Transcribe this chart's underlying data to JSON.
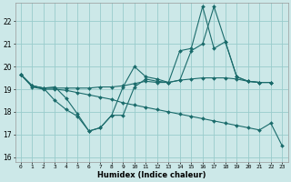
{
  "xlabel": "Humidex (Indice chaleur)",
  "x": [
    0,
    1,
    2,
    3,
    4,
    5,
    6,
    7,
    8,
    9,
    10,
    11,
    12,
    13,
    14,
    15,
    16,
    17,
    18,
    19,
    20,
    21,
    22,
    23
  ],
  "line_flat": [
    19.65,
    19.15,
    19.05,
    19.05,
    19.05,
    19.05,
    19.05,
    19.1,
    19.1,
    19.15,
    19.25,
    19.35,
    19.3,
    19.3,
    19.4,
    19.45,
    19.5,
    19.5,
    19.5,
    19.45,
    19.35,
    19.3,
    19.3,
    null
  ],
  "line_upper": [
    19.65,
    19.15,
    19.05,
    19.1,
    18.6,
    17.9,
    17.15,
    17.3,
    17.85,
    19.1,
    20.0,
    19.55,
    19.45,
    19.3,
    20.7,
    20.8,
    22.65,
    20.8,
    21.1,
    19.55,
    19.35,
    19.3,
    19.3,
    null
  ],
  "line_mid": [
    19.65,
    19.15,
    19.05,
    18.5,
    18.1,
    17.8,
    17.15,
    17.3,
    17.85,
    17.85,
    19.1,
    19.45,
    19.35,
    19.3,
    19.4,
    20.7,
    21.0,
    22.65,
    21.1,
    19.55,
    19.35,
    19.3,
    19.3,
    null
  ],
  "line_diag": [
    19.65,
    19.1,
    19.0,
    19.0,
    18.95,
    18.85,
    18.75,
    18.65,
    18.55,
    18.4,
    18.3,
    18.2,
    18.1,
    18.0,
    17.9,
    17.8,
    17.7,
    17.6,
    17.5,
    17.4,
    17.3,
    17.2,
    17.5,
    16.5
  ],
  "bg_color": "#cce8e8",
  "line_color": "#1a6b6b",
  "grid_color": "#99cccc",
  "ylim": [
    15.8,
    22.8
  ],
  "yticks": [
    16,
    17,
    18,
    19,
    20,
    21,
    22
  ],
  "xticks": [
    0,
    1,
    2,
    3,
    4,
    5,
    6,
    7,
    8,
    9,
    10,
    11,
    12,
    13,
    14,
    15,
    16,
    17,
    18,
    19,
    20,
    21,
    22,
    23
  ]
}
